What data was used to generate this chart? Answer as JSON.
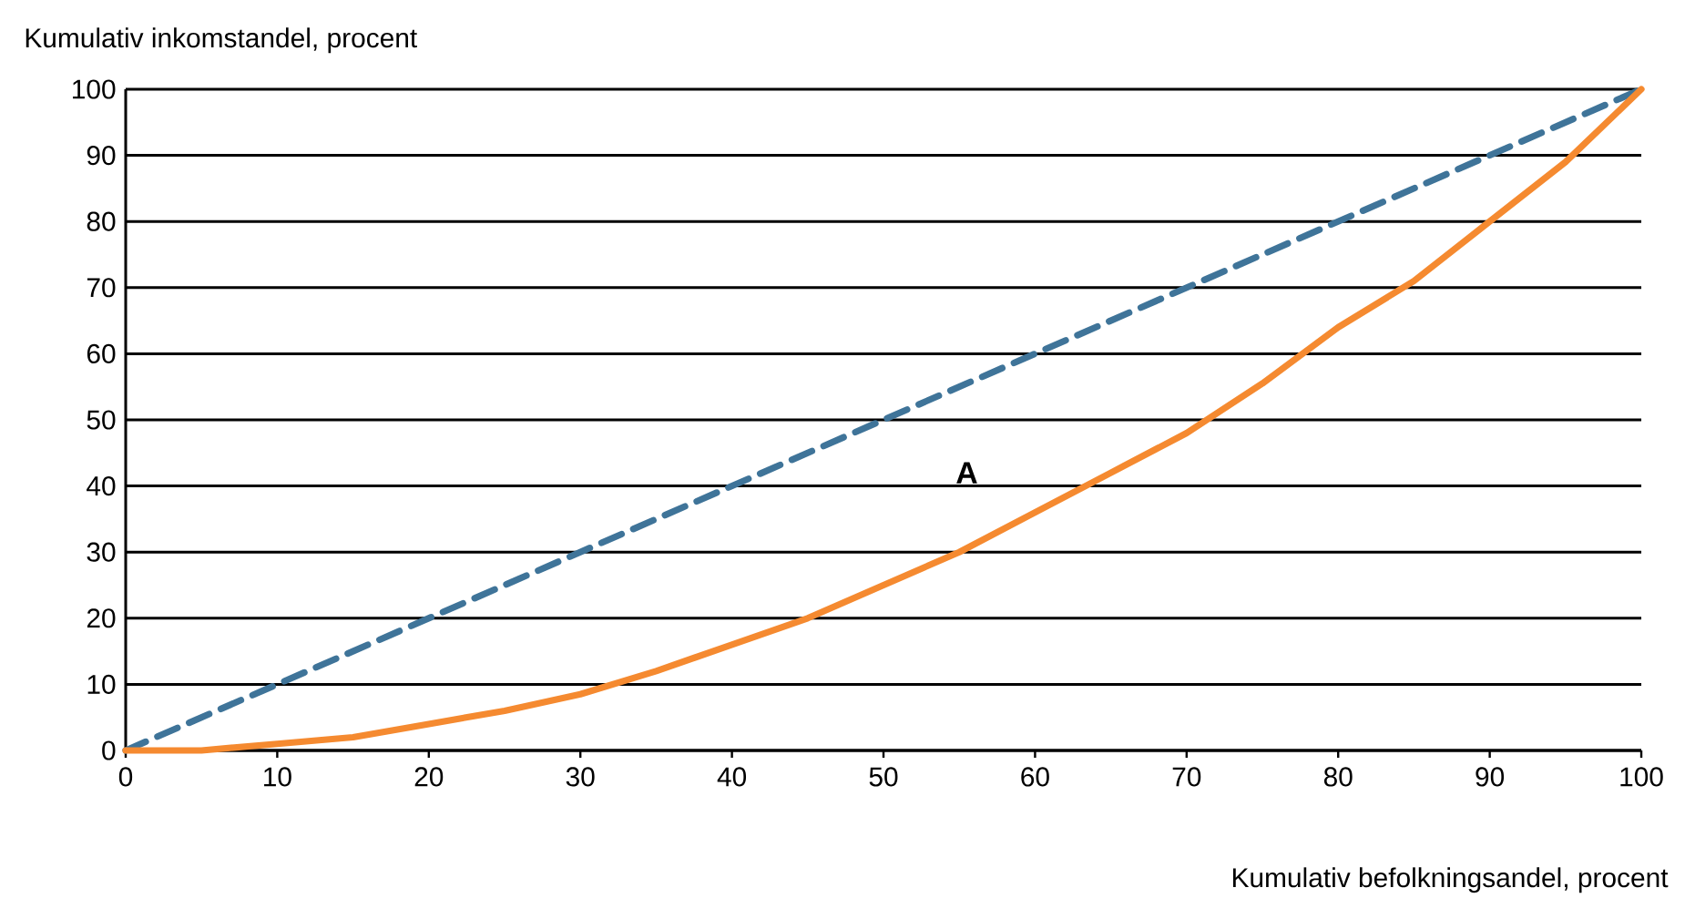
{
  "chart_data": {
    "type": "line",
    "xlabel": "Kumulativ befolkningsandel, procent",
    "ylabel": "Kumulativ inkomstandel, procent",
    "xlim": [
      0,
      100
    ],
    "ylim": [
      0,
      100
    ],
    "xticks": [
      0,
      10,
      20,
      30,
      40,
      50,
      60,
      70,
      80,
      90,
      100
    ],
    "yticks": [
      0,
      10,
      20,
      30,
      40,
      50,
      60,
      70,
      80,
      90,
      100
    ],
    "grid": "y",
    "annotations": [
      "A"
    ],
    "series": [
      {
        "color": "#3f7499",
        "line_style": "dashed",
        "x": [
          0,
          100
        ],
        "values": [
          0,
          100
        ]
      },
      {
        "color": "#f58a30",
        "line_style": "solid",
        "x": [
          0,
          5,
          10,
          15,
          20,
          25,
          30,
          35,
          40,
          45,
          50,
          55,
          60,
          65,
          70,
          75,
          80,
          85,
          90,
          95,
          100
        ],
        "values": [
          0,
          0,
          1,
          2,
          4,
          6,
          8.5,
          12,
          16,
          20,
          25,
          30,
          36,
          42,
          48,
          55.5,
          64,
          71,
          80,
          89,
          100
        ]
      }
    ]
  }
}
